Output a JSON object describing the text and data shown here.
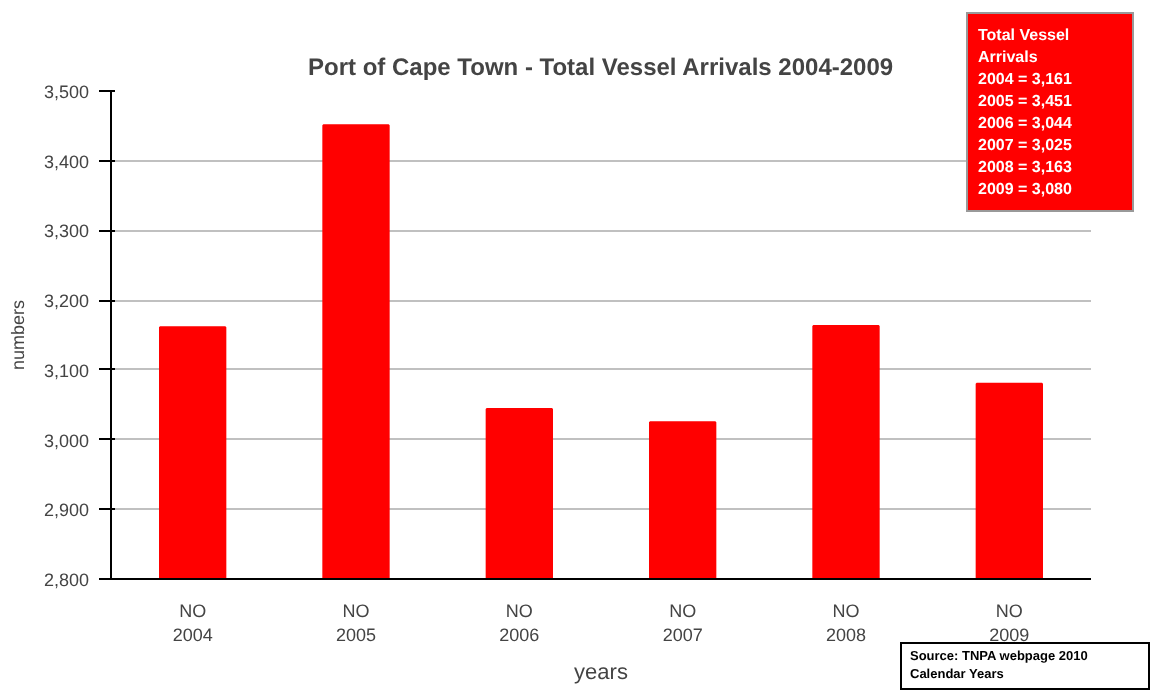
{
  "chart_data": {
    "type": "bar",
    "title": "Port of Cape Town - Total Vessel Arrivals 2004-2009",
    "xlabel": "years",
    "ylabel": "numbers",
    "categories": [
      "NO\n2004",
      "NO\n2005",
      "NO\n2006",
      "NO\n2007",
      "NO\n2008",
      "NO\n2009"
    ],
    "values": [
      3161,
      3451,
      3044,
      3025,
      3163,
      3080
    ],
    "color": "#ff0000",
    "ylim": [
      2800,
      3500
    ],
    "yticks": [
      {
        "value": 2800,
        "label": "2,800"
      },
      {
        "value": 2900,
        "label": "2,900"
      },
      {
        "value": 3000,
        "label": "3,000"
      },
      {
        "value": 3100,
        "label": "3,100"
      },
      {
        "value": 3200,
        "label": "3,200"
      },
      {
        "value": 3300,
        "label": "3,300"
      },
      {
        "value": 3400,
        "label": "3,400"
      },
      {
        "value": 3500,
        "label": "3,500"
      }
    ],
    "grid": "y",
    "annotations": [
      "Total Vessel\nArrivals\n2004 = 3,161\n2005 = 3,451\n2006 = 3,044\n2007 = 3,025\n2008 = 3,163\n2009 = 3,080",
      "Source: TNPA webpage 2010\nCalendar Years"
    ]
  }
}
